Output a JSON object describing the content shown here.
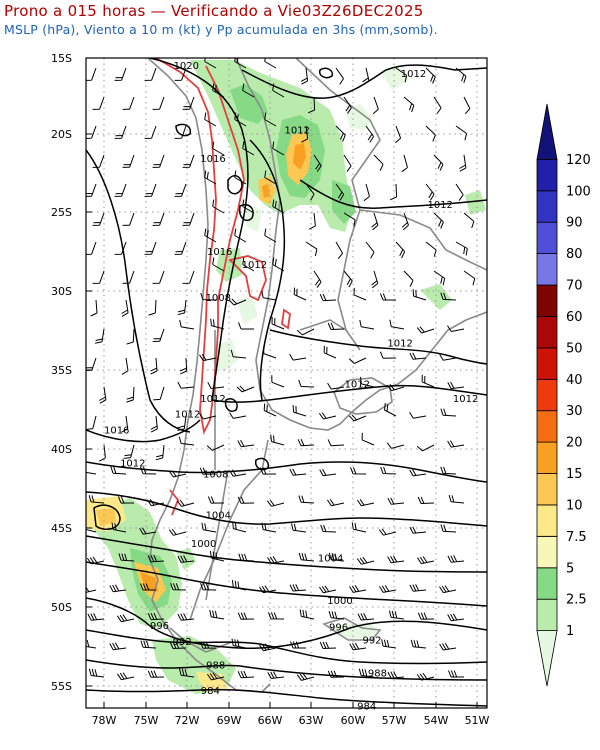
{
  "title": "Prono a 015 horas — Verificando a Vie03Z26DEC2025",
  "subtitle": "MSLP (hPa), Viento a 10 m (kt) y Pp acumulada en 3hs (mm,somb).",
  "map": {
    "lat_labels": [
      "15S",
      "20S",
      "25S",
      "30S",
      "35S",
      "40S",
      "45S",
      "50S",
      "55S"
    ],
    "lon_labels": [
      "78W",
      "75W",
      "72W",
      "69W",
      "66W",
      "63W",
      "60W",
      "57W",
      "54W",
      "51W"
    ],
    "isobar_labels": [
      {
        "text": "1020",
        "lon": -72.5,
        "lat": -15.7
      },
      {
        "text": "1012",
        "lon": -55.5,
        "lat": -16.2
      },
      {
        "text": "1012",
        "lon": -64.2,
        "lat": -19.8
      },
      {
        "text": "1016",
        "lon": -70.5,
        "lat": -21.6
      },
      {
        "text": "1012",
        "lon": -53.5,
        "lat": -24.5
      },
      {
        "text": "1016",
        "lon": -70.0,
        "lat": -27.5
      },
      {
        "text": "1012",
        "lon": -67.4,
        "lat": -28.3
      },
      {
        "text": "1008",
        "lon": -70.1,
        "lat": -30.4
      },
      {
        "text": "1012",
        "lon": -56.5,
        "lat": -33.3
      },
      {
        "text": "1012",
        "lon": -59.7,
        "lat": -35.9
      },
      {
        "text": "1012",
        "lon": -70.5,
        "lat": -36.8
      },
      {
        "text": "1012",
        "lon": -72.4,
        "lat": -37.8
      },
      {
        "text": "1012",
        "lon": -51.6,
        "lat": -36.8
      },
      {
        "text": "1016",
        "lon": -77.7,
        "lat": -38.8
      },
      {
        "text": "1012",
        "lon": -76.5,
        "lat": -40.9
      },
      {
        "text": "1008",
        "lon": -70.3,
        "lat": -41.6
      },
      {
        "text": "1004",
        "lon": -70.1,
        "lat": -44.2
      },
      {
        "text": "1000",
        "lon": -71.2,
        "lat": -46.0
      },
      {
        "text": "1004",
        "lon": -61.7,
        "lat": -46.9
      },
      {
        "text": "1000",
        "lon": -61.0,
        "lat": -49.6
      },
      {
        "text": "996",
        "lon": -74.5,
        "lat": -51.2
      },
      {
        "text": "996",
        "lon": -61.1,
        "lat": -51.3
      },
      {
        "text": "992",
        "lon": -72.8,
        "lat": -52.2
      },
      {
        "text": "992",
        "lon": -58.6,
        "lat": -52.1
      },
      {
        "text": "988",
        "lon": -70.3,
        "lat": -53.7
      },
      {
        "text": "988",
        "lon": -58.2,
        "lat": -54.2
      },
      {
        "text": "984",
        "lon": -70.7,
        "lat": -55.3
      },
      {
        "text": "984",
        "lon": -59.0,
        "lat": -56.3
      }
    ]
  },
  "colorbar": {
    "labels": [
      "1",
      "2.5",
      "5",
      "7.5",
      "10",
      "15",
      "20",
      "30",
      "40",
      "50",
      "60",
      "70",
      "80",
      "90",
      "100",
      "120"
    ],
    "colors": [
      "#e6f7e2",
      "#b9ebad",
      "#86d985",
      "#f6f7b8",
      "#fde98a",
      "#fcc853",
      "#f8a022",
      "#f56e14",
      "#ee3a0f",
      "#cf1208",
      "#aa0808",
      "#7e0303",
      "#7777e6",
      "#4f4fd7",
      "#3333c2",
      "#2020a8",
      "#12127a"
    ]
  }
}
